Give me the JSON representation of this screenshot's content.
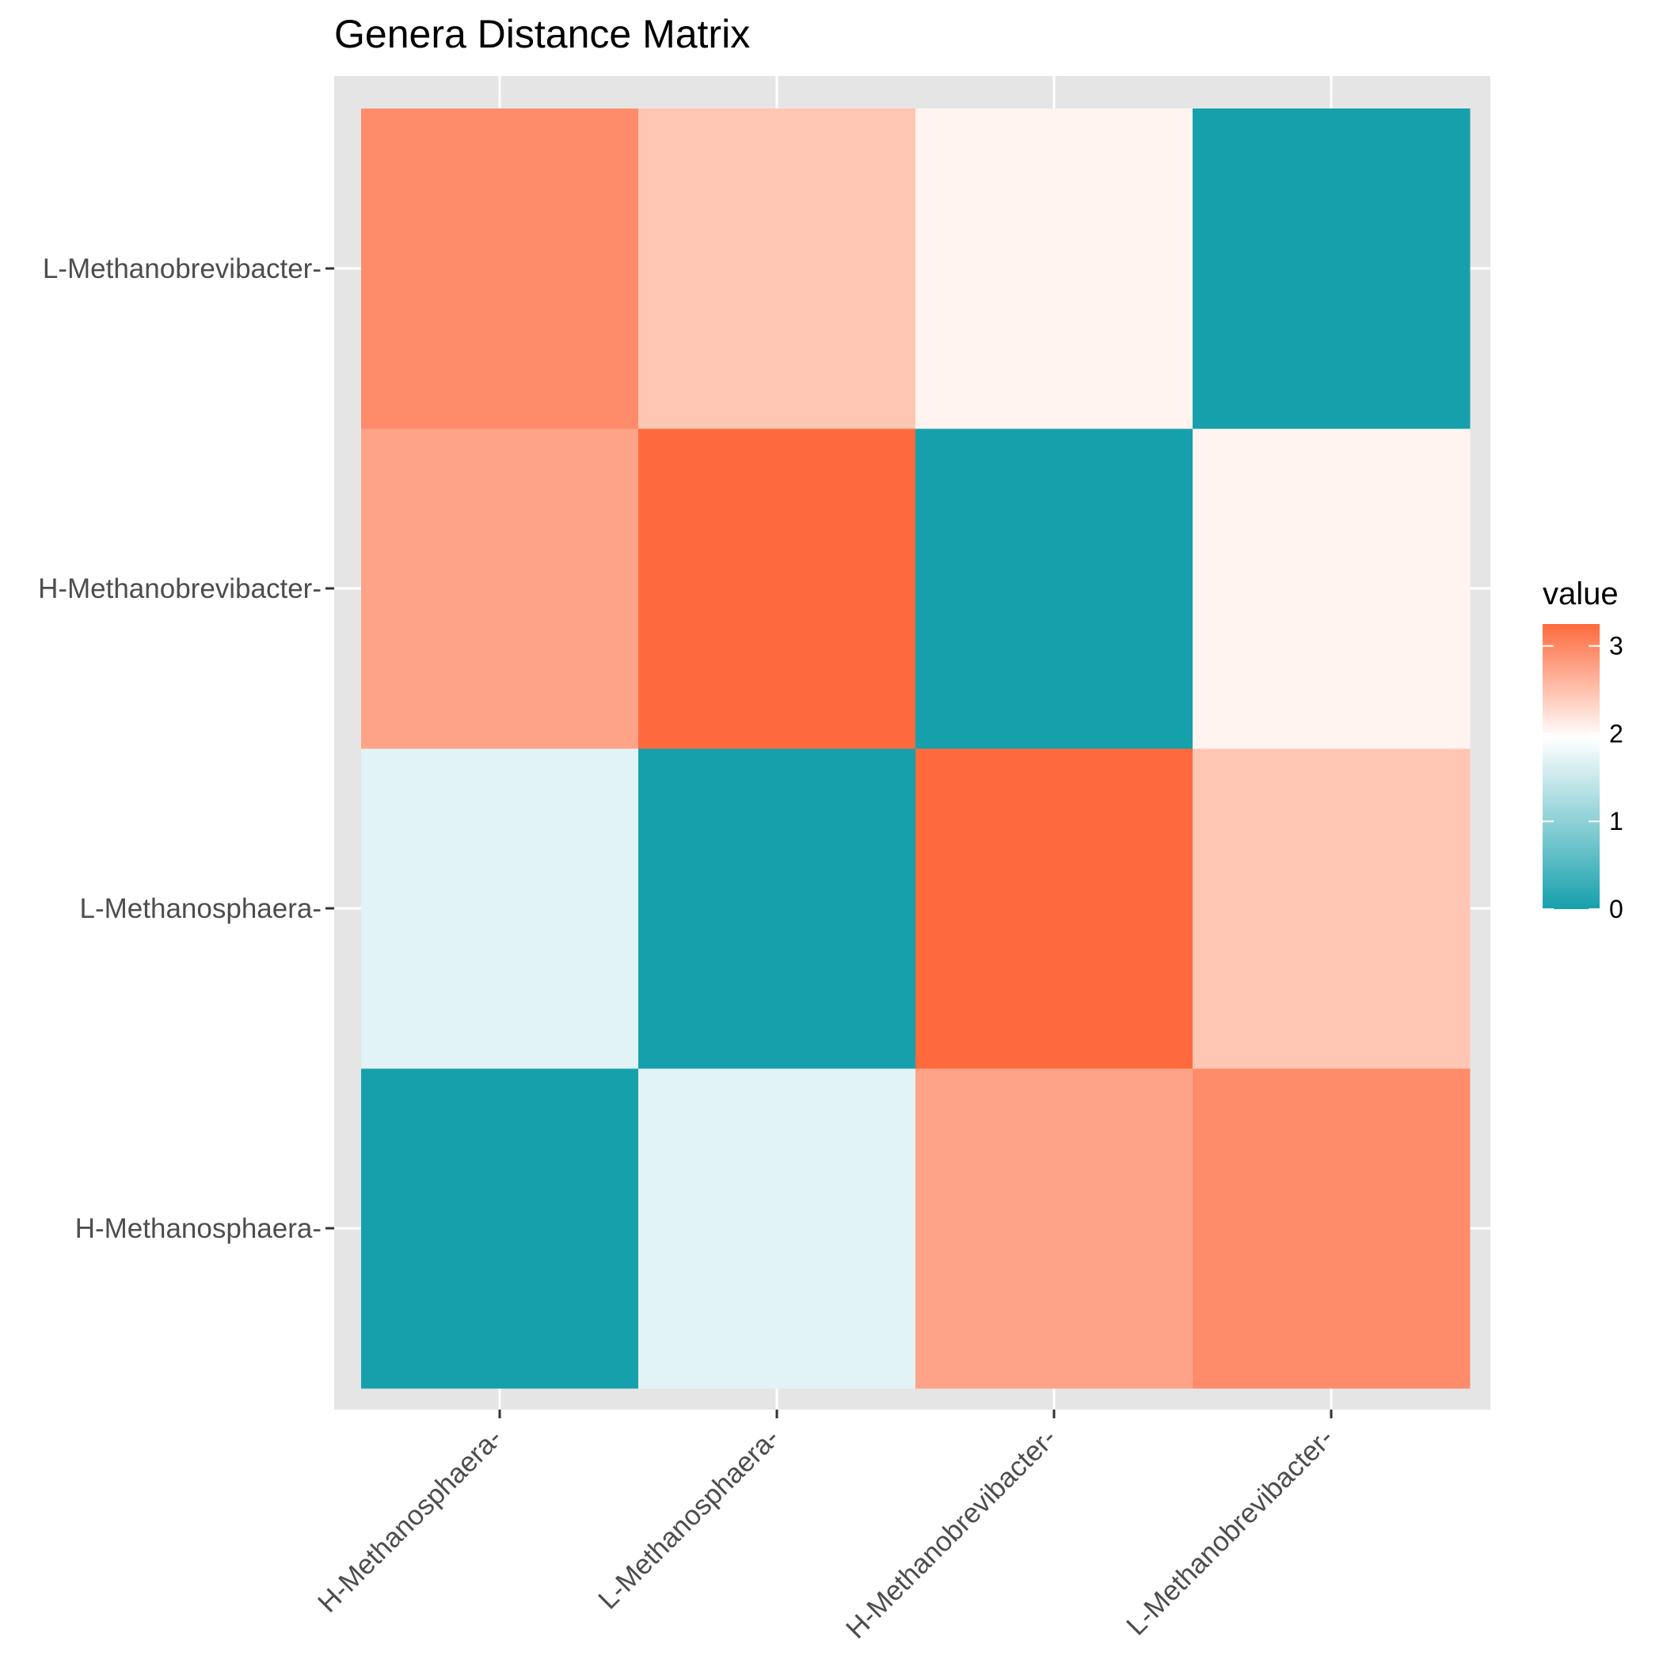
{
  "chart_data": {
    "type": "heatmap",
    "title": "Genera Distance Matrix",
    "x_categories": [
      "H-Methanosphaera-",
      "L-Methanosphaera-",
      "H-Methanobrevibacter-",
      "L-Methanobrevibacter-"
    ],
    "y_categories": [
      "H-Methanosphaera-",
      "L-Methanosphaera-",
      "H-Methanobrevibacter-",
      "L-Methanobrevibacter-"
    ],
    "values": [
      [
        0.0,
        1.7,
        2.75,
        2.95
      ],
      [
        1.7,
        0.0,
        3.25,
        2.45
      ],
      [
        2.75,
        3.25,
        0.0,
        2.05
      ],
      [
        2.95,
        2.45,
        2.05,
        0.0
      ]
    ],
    "legend": {
      "title": "value",
      "ticks": [
        0,
        1,
        2,
        3
      ],
      "range": [
        0,
        3.25
      ],
      "position": "right",
      "low_color": "#16a0ac",
      "mid_color": "#ffffff",
      "high_color": "#fe6a3d",
      "midpoint": 1.95
    },
    "panel_background": "#e5e5e5",
    "grid_color": "#ffffff"
  }
}
